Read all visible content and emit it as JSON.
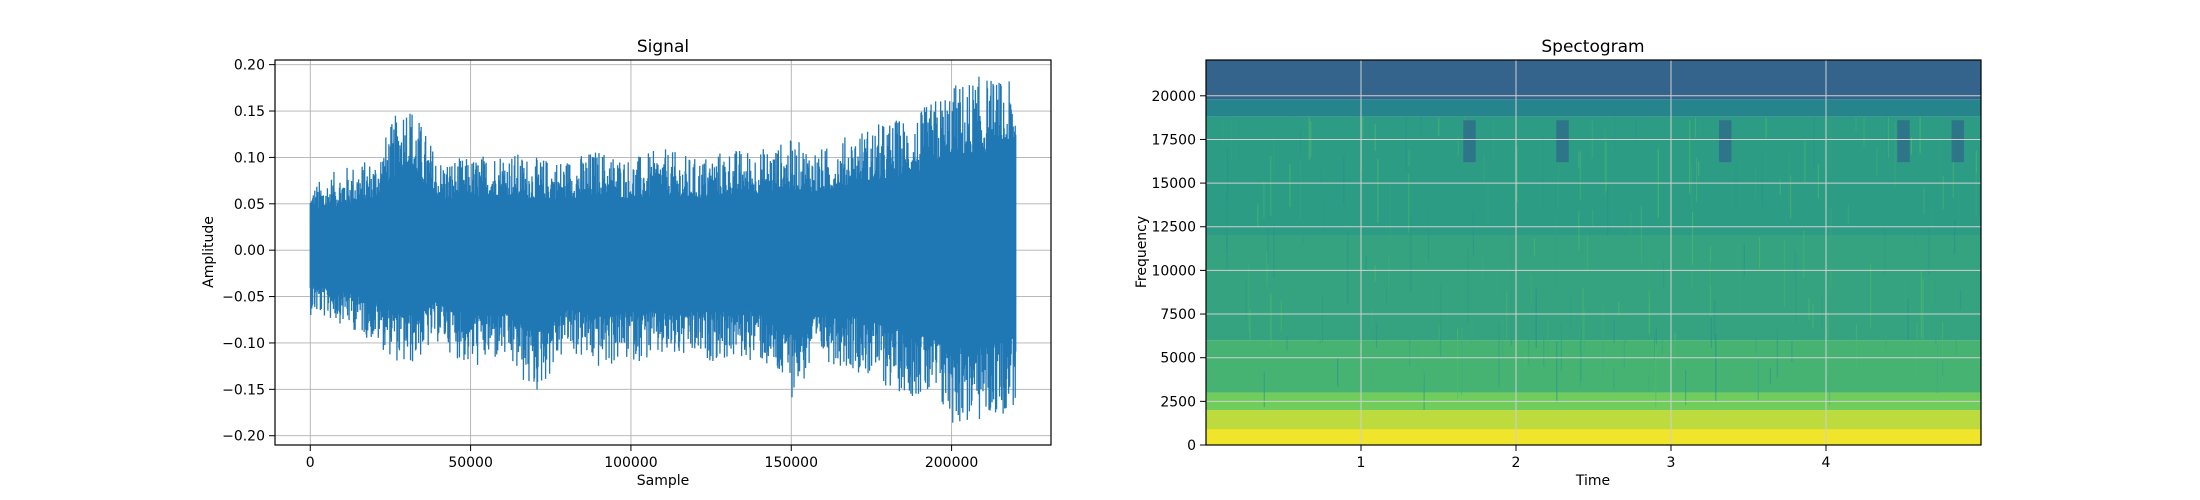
{
  "chart_data": [
    {
      "type": "line",
      "title": "Signal",
      "xlabel": "Sample",
      "ylabel": "Amplitude",
      "xlim": [
        -11000,
        231000
      ],
      "ylim": [
        -0.21,
        0.205
      ],
      "x_ticks": [
        0,
        50000,
        100000,
        150000,
        200000
      ],
      "x_tick_labels": [
        "0",
        "50000",
        "100000",
        "150000",
        "200000"
      ],
      "y_ticks": [
        -0.2,
        -0.15,
        -0.1,
        -0.05,
        0.0,
        0.05,
        0.1,
        0.15,
        0.2
      ],
      "y_tick_labels": [
        "−0.20",
        "−0.15",
        "−0.10",
        "−0.05",
        "0.00",
        "0.05",
        "0.10",
        "0.15",
        "0.20"
      ],
      "grid": true,
      "color": "#1f77b4",
      "series": [
        {
          "x": [
            0,
            10000,
            20000,
            30000,
            40000,
            50000,
            60000,
            70000,
            80000,
            90000,
            100000,
            110000,
            120000,
            130000,
            140000,
            150000,
            160000,
            170000,
            180000,
            190000,
            200000,
            210000,
            220000
          ],
          "upper": [
            0.07,
            0.09,
            0.1,
            0.17,
            0.1,
            0.1,
            0.11,
            0.1,
            0.1,
            0.11,
            0.1,
            0.11,
            0.1,
            0.11,
            0.11,
            0.12,
            0.11,
            0.13,
            0.14,
            0.15,
            0.18,
            0.19,
            0.18
          ],
          "lower": [
            -0.07,
            -0.08,
            -0.1,
            -0.13,
            -0.1,
            -0.13,
            -0.12,
            -0.16,
            -0.11,
            -0.13,
            -0.12,
            -0.12,
            -0.12,
            -0.12,
            -0.12,
            -0.16,
            -0.12,
            -0.13,
            -0.15,
            -0.16,
            -0.19,
            -0.19,
            -0.17
          ]
        }
      ]
    },
    {
      "type": "heatmap",
      "title": "Spectogram",
      "xlabel": "Time",
      "ylabel": "Frequency",
      "xlim": [
        0,
        5
      ],
      "ylim": [
        0,
        22050
      ],
      "x_ticks": [
        1,
        2,
        3,
        4
      ],
      "x_tick_labels": [
        "1",
        "2",
        "3",
        "4"
      ],
      "y_ticks": [
        0,
        2500,
        5000,
        7500,
        10000,
        12500,
        15000,
        17500,
        20000
      ],
      "y_tick_labels": [
        "0",
        "2500",
        "5000",
        "7500",
        "10000",
        "12500",
        "15000",
        "17500",
        "20000"
      ],
      "grid": true,
      "colormap": "viridis",
      "bands": [
        {
          "from": 0,
          "to": 2000,
          "level": 0.9
        },
        {
          "from": 2000,
          "to": 3000,
          "level": 0.78
        },
        {
          "from": 3000,
          "to": 6000,
          "level": 0.65
        },
        {
          "from": 6000,
          "to": 12000,
          "level": 0.58
        },
        {
          "from": 12000,
          "to": 18800,
          "level": 0.55
        },
        {
          "from": 18800,
          "to": 19800,
          "level": 0.45
        },
        {
          "from": 19800,
          "to": 22050,
          "level": 0.32
        }
      ]
    }
  ]
}
